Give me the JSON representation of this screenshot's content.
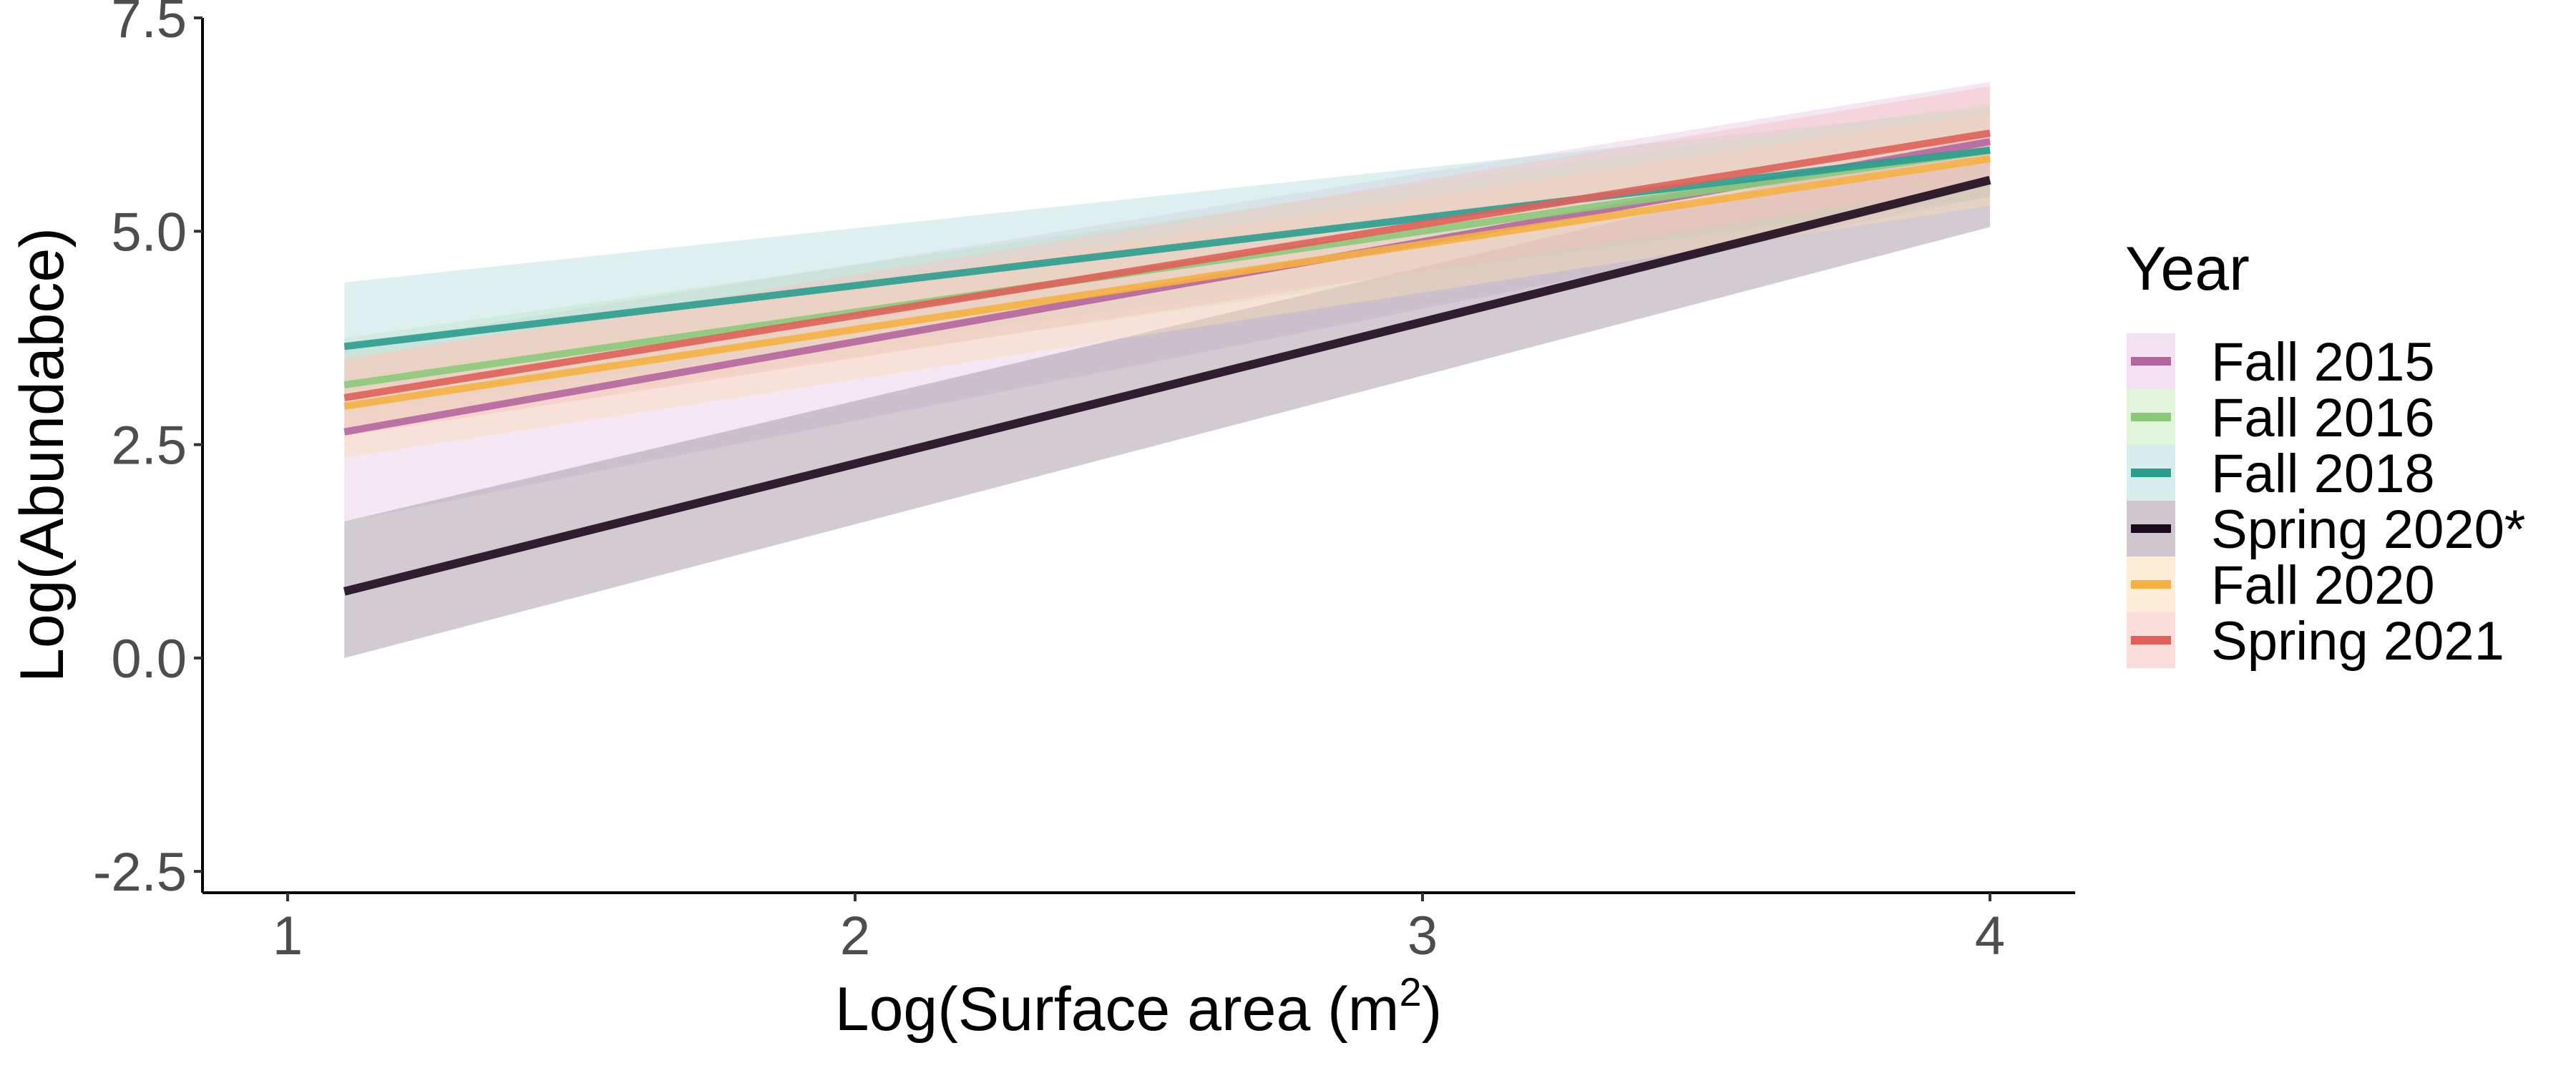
{
  "chart_data": {
    "type": "line",
    "xlabel": "Log(Surface area (m",
    "xlabel_superscript": "2",
    "xlabel_suffix": ")",
    "ylabel": "Log(Abundabce)",
    "xlim": [
      0.85,
      4.15
    ],
    "ylim": [
      -2.75,
      7.5
    ],
    "x_ticks": [
      1,
      2,
      3,
      4
    ],
    "x_tick_labels": [
      "1",
      "2",
      "3",
      "4"
    ],
    "y_ticks": [
      -2.5,
      0.0,
      2.5,
      5.0,
      7.5
    ],
    "y_tick_labels": [
      "-2.5",
      "0.0",
      "2.5",
      "5.0",
      "7.5"
    ],
    "grid": false,
    "legend": {
      "title": "Year",
      "position": "right"
    },
    "series": [
      {
        "name": "Fall 2015",
        "color": "#b5669e",
        "fill": "#e8c8e6",
        "x": [
          1.1,
          4.0
        ],
        "y": [
          2.65,
          6.05
        ],
        "lower": [
          1.6,
          5.4
        ],
        "upper": [
          3.65,
          6.75
        ]
      },
      {
        "name": "Fall 2016",
        "color": "#8bc97a",
        "fill": "#c9ecc0",
        "x": [
          1.1,
          4.0
        ],
        "y": [
          3.2,
          5.95
        ],
        "lower": [
          2.7,
          5.4
        ],
        "upper": [
          3.75,
          6.5
        ]
      },
      {
        "name": "Fall 2018",
        "color": "#2a9d8f",
        "fill": "#b3dedb",
        "x": [
          1.1,
          4.0
        ],
        "y": [
          3.65,
          5.95
        ],
        "lower": [
          2.9,
          5.4
        ],
        "upper": [
          4.4,
          6.45
        ]
      },
      {
        "name": "Spring 2020*",
        "color": "#1e0a1e",
        "fill": "#a59aa6",
        "x": [
          1.1,
          4.0
        ],
        "y": [
          0.78,
          5.6
        ],
        "lower": [
          0.0,
          5.05
        ],
        "upper": [
          1.6,
          6.15
        ]
      },
      {
        "name": "Fall 2020",
        "color": "#f5b041",
        "fill": "#fbdcb5",
        "x": [
          1.1,
          4.0
        ],
        "y": [
          2.95,
          5.85
        ],
        "lower": [
          2.35,
          5.3
        ],
        "upper": [
          3.5,
          6.4
        ]
      },
      {
        "name": "Spring 2021",
        "color": "#e0605a",
        "fill": "#f6c1bd",
        "x": [
          1.1,
          4.0
        ],
        "y": [
          3.05,
          6.15
        ],
        "lower": [
          2.6,
          5.55
        ],
        "upper": [
          3.5,
          6.7
        ]
      }
    ]
  }
}
